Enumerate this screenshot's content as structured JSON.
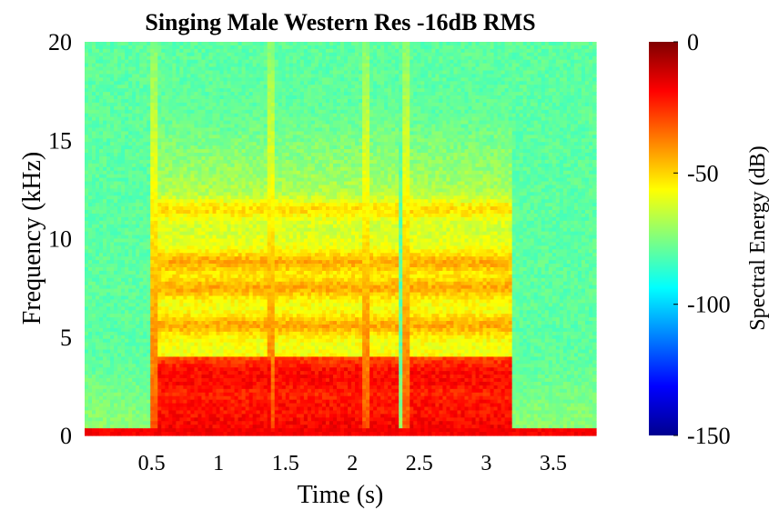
{
  "chart_data": {
    "type": "heatmap",
    "title": "Singing Male Western Res -16dB RMS",
    "xlabel": "Time (s)",
    "ylabel": "Frequency (kHz)",
    "xlim": [
      0,
      3.82
    ],
    "ylim": [
      0,
      20
    ],
    "x_ticks": [
      {
        "value": 0.5,
        "label": "0.5"
      },
      {
        "value": 1,
        "label": "1"
      },
      {
        "value": 1.5,
        "label": "1.5"
      },
      {
        "value": 2,
        "label": "2"
      },
      {
        "value": 2.5,
        "label": "2.5"
      },
      {
        "value": 3,
        "label": "3"
      },
      {
        "value": 3.5,
        "label": "3.5"
      }
    ],
    "y_ticks": [
      {
        "value": 0,
        "label": "0"
      },
      {
        "value": 5,
        "label": "5"
      },
      {
        "value": 10,
        "label": "10"
      },
      {
        "value": 15,
        "label": "15"
      },
      {
        "value": 20,
        "label": "20"
      }
    ],
    "colorbar": {
      "label": "Spectral Energy (dB)",
      "range": [
        -150,
        0
      ],
      "colormap": "jet",
      "ticks": [
        {
          "value": 0,
          "label": "0"
        },
        {
          "value": -50,
          "label": "-50"
        },
        {
          "value": -100,
          "label": "-100"
        },
        {
          "value": -150,
          "label": "-150"
        }
      ]
    },
    "background_level_db": -80,
    "voiced_segments_s": [
      [
        0.55,
        1.38
      ],
      [
        1.42,
        2.08
      ],
      [
        2.12,
        2.35
      ],
      [
        2.42,
        3.2
      ]
    ],
    "transients_s": [
      0.53,
      1.4,
      2.1,
      2.4
    ],
    "harmonic_bands_khz": [
      0.2,
      0.8,
      1.6,
      2.6,
      3.3,
      5.6,
      7.5,
      8.8,
      11.5
    ],
    "grid": false
  }
}
